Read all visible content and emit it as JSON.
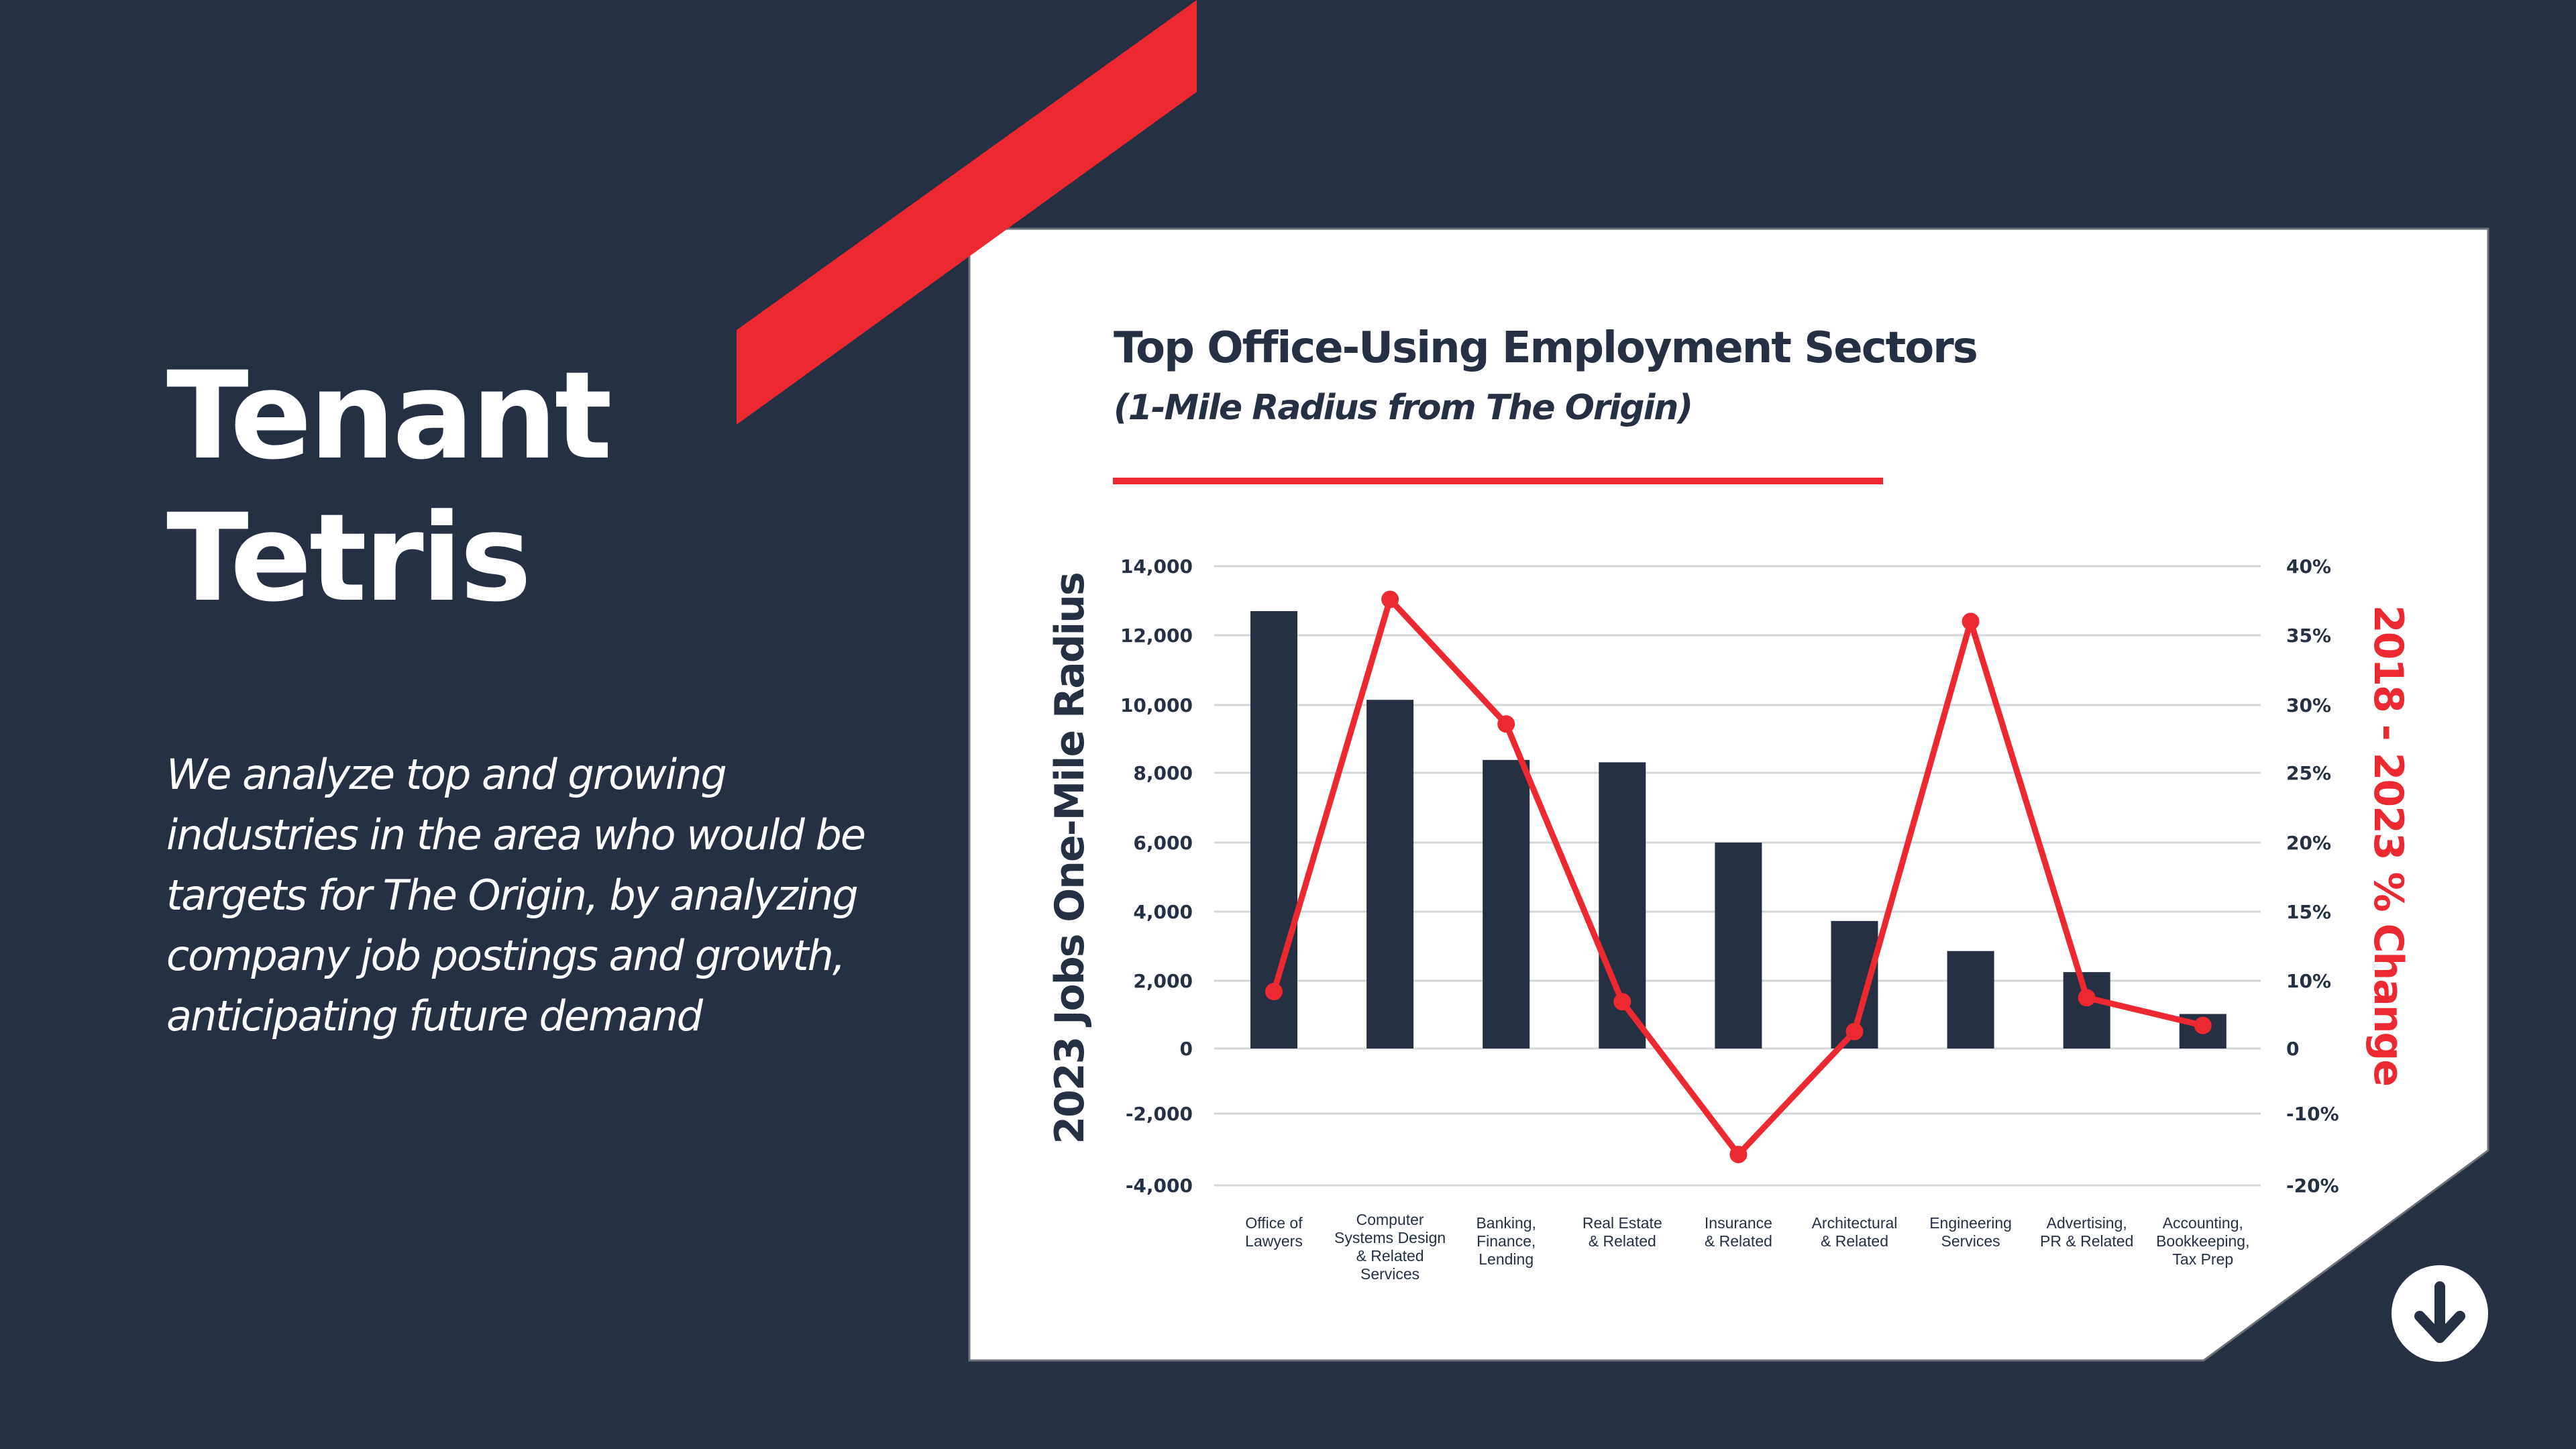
{
  "slide": {
    "title_lines": [
      "Tenant",
      "Tetris"
    ],
    "description": "We analyze top and growing industries in the area who would be targets for The Origin, by analyzing company job postings and growth, anticipating future demand"
  },
  "colors": {
    "background": "#253143",
    "accent_red": "#ec2830",
    "card": "#ffffff",
    "bar": "#253143",
    "gridline": "#d5d6d8"
  },
  "nav": {
    "scroll_down_icon": "arrow-down-circle-icon"
  },
  "chart_data": {
    "type": "bar+line",
    "title": "Top Office-Using Employment Sectors",
    "subtitle": "(1-Mile Radius from The Origin)",
    "categories": [
      "Office of Lawyers",
      "Computer Systems Design & Related Services",
      "Banking, Finance, Lending",
      "Real Estate & Related",
      "Insurance & Related",
      "Architectural & Related",
      "Engineering Services",
      "Advertising, PR & Related",
      "Accounting, Bookkeeping, Tax Prep"
    ],
    "category_label_lines": [
      [
        "Office of",
        "Lawyers"
      ],
      [
        "Computer",
        "Systems Design",
        "& Related",
        "Services"
      ],
      [
        "Banking,",
        "Finance,",
        "Lending"
      ],
      [
        "Real Estate",
        "& Related"
      ],
      [
        "Insurance",
        "& Related"
      ],
      [
        "Architectural",
        "& Related"
      ],
      [
        "Engineering",
        "Services"
      ],
      [
        "Advertising,",
        "PR & Related"
      ],
      [
        "Accounting,",
        "Bookkeeping,",
        "Tax Prep"
      ]
    ],
    "series": [
      {
        "name": "2023 Jobs One-Mile Radius",
        "type": "bar",
        "axis": "left",
        "values": [
          12700,
          10150,
          8380,
          8310,
          6000,
          3730,
          2860,
          2250,
          1020
        ]
      },
      {
        "name": "2018 - 2023 % Change",
        "type": "line",
        "axis": "right",
        "values": [
          8.4,
          37.6,
          28.6,
          6.9,
          -15.7,
          2.5,
          36.0,
          7.5,
          3.4
        ]
      }
    ],
    "ylabel_left": "2023 Jobs One-Mile Radius",
    "ylabel_right": "2018 - 2023 % Change",
    "left_ticks": [
      14000,
      12000,
      10000,
      8000,
      6000,
      4000,
      2000,
      0,
      -2000,
      -4000
    ],
    "left_tick_labels": [
      "14,000",
      "12,000",
      "10,000",
      "8,000",
      "6,000",
      "4,000",
      "2,000",
      "0",
      "-2,000",
      "-4,000"
    ],
    "right_ticks": [
      40,
      35,
      30,
      25,
      20,
      15,
      10,
      0,
      -10,
      -20
    ],
    "right_tick_labels": [
      "40%",
      "35%",
      "30%",
      "25%",
      "20%",
      "15%",
      "10%",
      "0",
      "-10%",
      "-20%"
    ],
    "ylim_left": [
      -4000,
      14000
    ],
    "ylim_right": [
      -20,
      40
    ],
    "grid": true,
    "legend": "none"
  }
}
